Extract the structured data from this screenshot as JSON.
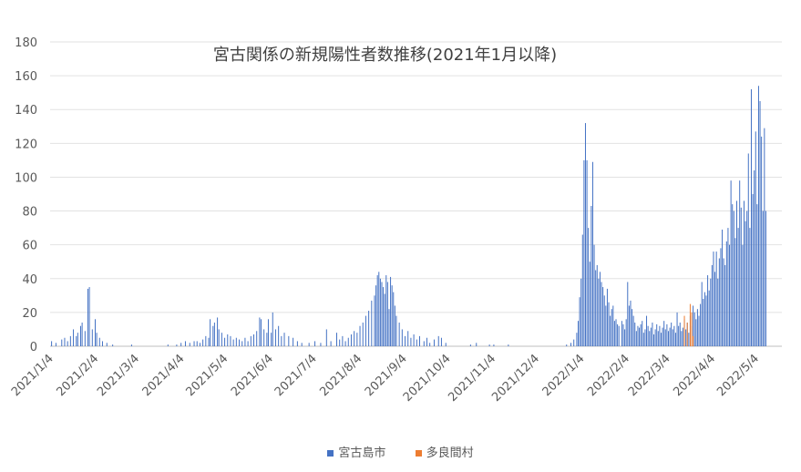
{
  "chart_data": {
    "type": "bar",
    "title": "宮古関係の新規陽性者数推移(2021年1月以降)",
    "xlabel": "",
    "ylabel": "",
    "ylim": [
      0,
      180
    ],
    "y_ticks": [
      0,
      20,
      40,
      60,
      80,
      100,
      120,
      140,
      160,
      180
    ],
    "x_range": [
      "2021-01-04",
      "2022-05-22"
    ],
    "x_tick_labels": [
      "2021/1/4",
      "2021/2/4",
      "2021/3/4",
      "2021/4/4",
      "2021/5/4",
      "2021/6/4",
      "2021/7/4",
      "2021/8/4",
      "2021/9/4",
      "2021/10/4",
      "2021/11/4",
      "2021/12/4",
      "2022/1/4",
      "2022/2/4",
      "2022/3/4",
      "2022/4/4",
      "2022/5/4"
    ],
    "grid": "horizontal",
    "legend_position": "bottom",
    "series": [
      {
        "name": "宮古島市",
        "color": "#4472c4",
        "points": [
          [
            "2021-01-05",
            3
          ],
          [
            "2021-01-08",
            2
          ],
          [
            "2021-01-12",
            4
          ],
          [
            "2021-01-14",
            5
          ],
          [
            "2021-01-16",
            3
          ],
          [
            "2021-01-18",
            6
          ],
          [
            "2021-01-20",
            10
          ],
          [
            "2021-01-22",
            6
          ],
          [
            "2021-01-23",
            8
          ],
          [
            "2021-01-25",
            12
          ],
          [
            "2021-01-26",
            14
          ],
          [
            "2021-01-28",
            9
          ],
          [
            "2021-01-30",
            34
          ],
          [
            "2021-01-31",
            35
          ],
          [
            "2021-02-02",
            10
          ],
          [
            "2021-02-04",
            16
          ],
          [
            "2021-02-05",
            8
          ],
          [
            "2021-02-07",
            5
          ],
          [
            "2021-02-09",
            3
          ],
          [
            "2021-02-12",
            2
          ],
          [
            "2021-02-16",
            1
          ],
          [
            "2021-03-01",
            1
          ],
          [
            "2021-03-26",
            1
          ],
          [
            "2021-04-01",
            1
          ],
          [
            "2021-04-04",
            2
          ],
          [
            "2021-04-07",
            3
          ],
          [
            "2021-04-10",
            2
          ],
          [
            "2021-04-13",
            3
          ],
          [
            "2021-04-15",
            3
          ],
          [
            "2021-04-17",
            2
          ],
          [
            "2021-04-19",
            4
          ],
          [
            "2021-04-21",
            6
          ],
          [
            "2021-04-23",
            5
          ],
          [
            "2021-04-24",
            16
          ],
          [
            "2021-04-26",
            12
          ],
          [
            "2021-04-27",
            14
          ],
          [
            "2021-04-29",
            17
          ],
          [
            "2021-04-30",
            10
          ],
          [
            "2021-05-02",
            8
          ],
          [
            "2021-05-04",
            5
          ],
          [
            "2021-05-06",
            7
          ],
          [
            "2021-05-08",
            6
          ],
          [
            "2021-05-10",
            4
          ],
          [
            "2021-05-12",
            5
          ],
          [
            "2021-05-14",
            4
          ],
          [
            "2021-05-16",
            3
          ],
          [
            "2021-05-18",
            5
          ],
          [
            "2021-05-20",
            3
          ],
          [
            "2021-05-22",
            6
          ],
          [
            "2021-05-24",
            7
          ],
          [
            "2021-05-26",
            9
          ],
          [
            "2021-05-28",
            17
          ],
          [
            "2021-05-29",
            16
          ],
          [
            "2021-05-31",
            10
          ],
          [
            "2021-06-02",
            8
          ],
          [
            "2021-06-03",
            16
          ],
          [
            "2021-06-05",
            8
          ],
          [
            "2021-06-06",
            20
          ],
          [
            "2021-06-08",
            10
          ],
          [
            "2021-06-10",
            12
          ],
          [
            "2021-06-12",
            6
          ],
          [
            "2021-06-14",
            8
          ],
          [
            "2021-06-17",
            6
          ],
          [
            "2021-06-20",
            5
          ],
          [
            "2021-06-23",
            3
          ],
          [
            "2021-06-26",
            2
          ],
          [
            "2021-07-01",
            2
          ],
          [
            "2021-07-05",
            3
          ],
          [
            "2021-07-09",
            2
          ],
          [
            "2021-07-13",
            10
          ],
          [
            "2021-07-16",
            3
          ],
          [
            "2021-07-20",
            8
          ],
          [
            "2021-07-22",
            4
          ],
          [
            "2021-07-24",
            6
          ],
          [
            "2021-07-26",
            3
          ],
          [
            "2021-07-28",
            5
          ],
          [
            "2021-07-30",
            7
          ],
          [
            "2021-08-01",
            9
          ],
          [
            "2021-08-03",
            8
          ],
          [
            "2021-08-05",
            12
          ],
          [
            "2021-08-07",
            14
          ],
          [
            "2021-08-09",
            18
          ],
          [
            "2021-08-11",
            21
          ],
          [
            "2021-08-13",
            27
          ],
          [
            "2021-08-15",
            30
          ],
          [
            "2021-08-16",
            36
          ],
          [
            "2021-08-17",
            42
          ],
          [
            "2021-08-18",
            44
          ],
          [
            "2021-08-19",
            40
          ],
          [
            "2021-08-20",
            38
          ],
          [
            "2021-08-21",
            35
          ],
          [
            "2021-08-22",
            31
          ],
          [
            "2021-08-23",
            42
          ],
          [
            "2021-08-24",
            38
          ],
          [
            "2021-08-25",
            22
          ],
          [
            "2021-08-26",
            41
          ],
          [
            "2021-08-27",
            36
          ],
          [
            "2021-08-28",
            32
          ],
          [
            "2021-08-29",
            24
          ],
          [
            "2021-08-30",
            18
          ],
          [
            "2021-09-01",
            14
          ],
          [
            "2021-09-03",
            10
          ],
          [
            "2021-09-05",
            6
          ],
          [
            "2021-09-07",
            9
          ],
          [
            "2021-09-09",
            5
          ],
          [
            "2021-09-11",
            7
          ],
          [
            "2021-09-13",
            4
          ],
          [
            "2021-09-15",
            6
          ],
          [
            "2021-09-18",
            3
          ],
          [
            "2021-09-20",
            5
          ],
          [
            "2021-09-22",
            2
          ],
          [
            "2021-09-25",
            4
          ],
          [
            "2021-09-28",
            6
          ],
          [
            "2021-09-30",
            5
          ],
          [
            "2021-10-03",
            2
          ],
          [
            "2021-10-20",
            1
          ],
          [
            "2021-10-24",
            2
          ],
          [
            "2021-11-02",
            1
          ],
          [
            "2021-11-05",
            1
          ],
          [
            "2021-11-15",
            1
          ],
          [
            "2021-12-25",
            1
          ],
          [
            "2021-12-28",
            2
          ],
          [
            "2021-12-30",
            4
          ],
          [
            "2022-01-01",
            8
          ],
          [
            "2022-01-02",
            15
          ],
          [
            "2022-01-03",
            29
          ],
          [
            "2022-01-04",
            40
          ],
          [
            "2022-01-05",
            66
          ],
          [
            "2022-01-06",
            110
          ],
          [
            "2022-01-07",
            132
          ],
          [
            "2022-01-08",
            110
          ],
          [
            "2022-01-09",
            70
          ],
          [
            "2022-01-10",
            50
          ],
          [
            "2022-01-11",
            83
          ],
          [
            "2022-01-12",
            109
          ],
          [
            "2022-01-13",
            60
          ],
          [
            "2022-01-14",
            45
          ],
          [
            "2022-01-15",
            48
          ],
          [
            "2022-01-16",
            40
          ],
          [
            "2022-01-17",
            44
          ],
          [
            "2022-01-18",
            38
          ],
          [
            "2022-01-19",
            35
          ],
          [
            "2022-01-20",
            30
          ],
          [
            "2022-01-21",
            24
          ],
          [
            "2022-01-22",
            34
          ],
          [
            "2022-01-23",
            26
          ],
          [
            "2022-01-24",
            18
          ],
          [
            "2022-01-25",
            22
          ],
          [
            "2022-01-26",
            24
          ],
          [
            "2022-01-27",
            15
          ],
          [
            "2022-01-28",
            16
          ],
          [
            "2022-01-29",
            13
          ],
          [
            "2022-01-30",
            12
          ],
          [
            "2022-02-01",
            15
          ],
          [
            "2022-02-02",
            13
          ],
          [
            "2022-02-03",
            10
          ],
          [
            "2022-02-04",
            16
          ],
          [
            "2022-02-05",
            38
          ],
          [
            "2022-02-06",
            24
          ],
          [
            "2022-02-07",
            27
          ],
          [
            "2022-02-08",
            22
          ],
          [
            "2022-02-09",
            18
          ],
          [
            "2022-02-10",
            14
          ],
          [
            "2022-02-11",
            9
          ],
          [
            "2022-02-12",
            12
          ],
          [
            "2022-02-13",
            11
          ],
          [
            "2022-02-14",
            13
          ],
          [
            "2022-02-15",
            15
          ],
          [
            "2022-02-16",
            8
          ],
          [
            "2022-02-17",
            10
          ],
          [
            "2022-02-18",
            18
          ],
          [
            "2022-02-19",
            12
          ],
          [
            "2022-02-20",
            9
          ],
          [
            "2022-02-21",
            11
          ],
          [
            "2022-02-22",
            14
          ],
          [
            "2022-02-23",
            7
          ],
          [
            "2022-02-24",
            10
          ],
          [
            "2022-02-25",
            13
          ],
          [
            "2022-02-26",
            9
          ],
          [
            "2022-02-27",
            12
          ],
          [
            "2022-02-28",
            8
          ],
          [
            "2022-03-01",
            11
          ],
          [
            "2022-03-02",
            15
          ],
          [
            "2022-03-03",
            10
          ],
          [
            "2022-03-04",
            13
          ],
          [
            "2022-03-05",
            9
          ],
          [
            "2022-03-06",
            11
          ],
          [
            "2022-03-07",
            14
          ],
          [
            "2022-03-08",
            10
          ],
          [
            "2022-03-09",
            12
          ],
          [
            "2022-03-10",
            8
          ],
          [
            "2022-03-11",
            20
          ],
          [
            "2022-03-12",
            12
          ],
          [
            "2022-03-13",
            14
          ],
          [
            "2022-03-14",
            9
          ],
          [
            "2022-03-15",
            11
          ],
          [
            "2022-03-16",
            16
          ],
          [
            "2022-03-17",
            10
          ],
          [
            "2022-03-18",
            14
          ],
          [
            "2022-03-19",
            8
          ],
          [
            "2022-03-20",
            18
          ],
          [
            "2022-03-21",
            12
          ],
          [
            "2022-03-22",
            24
          ],
          [
            "2022-03-23",
            20
          ],
          [
            "2022-03-24",
            16
          ],
          [
            "2022-03-25",
            22
          ],
          [
            "2022-03-26",
            18
          ],
          [
            "2022-03-27",
            25
          ],
          [
            "2022-03-28",
            38
          ],
          [
            "2022-03-29",
            28
          ],
          [
            "2022-03-30",
            32
          ],
          [
            "2022-03-31",
            30
          ],
          [
            "2022-04-01",
            42
          ],
          [
            "2022-04-02",
            33
          ],
          [
            "2022-04-03",
            40
          ],
          [
            "2022-04-04",
            48
          ],
          [
            "2022-04-05",
            56
          ],
          [
            "2022-04-06",
            44
          ],
          [
            "2022-04-07",
            56
          ],
          [
            "2022-04-08",
            40
          ],
          [
            "2022-04-09",
            52
          ],
          [
            "2022-04-10",
            58
          ],
          [
            "2022-04-11",
            69
          ],
          [
            "2022-04-12",
            52
          ],
          [
            "2022-04-13",
            48
          ],
          [
            "2022-04-14",
            62
          ],
          [
            "2022-04-15",
            70
          ],
          [
            "2022-04-16",
            60
          ],
          [
            "2022-04-17",
            98
          ],
          [
            "2022-04-18",
            84
          ],
          [
            "2022-04-19",
            80
          ],
          [
            "2022-04-20",
            64
          ],
          [
            "2022-04-21",
            86
          ],
          [
            "2022-04-22",
            70
          ],
          [
            "2022-04-23",
            98
          ],
          [
            "2022-04-24",
            82
          ],
          [
            "2022-04-25",
            60
          ],
          [
            "2022-04-26",
            86
          ],
          [
            "2022-04-27",
            74
          ],
          [
            "2022-04-28",
            80
          ],
          [
            "2022-04-29",
            114
          ],
          [
            "2022-04-30",
            70
          ],
          [
            "2022-05-01",
            152
          ],
          [
            "2022-05-02",
            90
          ],
          [
            "2022-05-03",
            104
          ],
          [
            "2022-05-04",
            127
          ],
          [
            "2022-05-05",
            84
          ],
          [
            "2022-05-06",
            154
          ],
          [
            "2022-05-07",
            145
          ],
          [
            "2022-05-08",
            124
          ],
          [
            "2022-05-09",
            80
          ],
          [
            "2022-05-10",
            129
          ],
          [
            "2022-05-11",
            80
          ]
        ]
      },
      {
        "name": "多良間村",
        "color": "#ed7d31",
        "points": [
          [
            "2022-03-16",
            18
          ],
          [
            "2022-03-18",
            14
          ],
          [
            "2022-03-20",
            25
          ],
          [
            "2022-03-21",
            20
          ],
          [
            "2022-03-22",
            6
          ]
        ]
      }
    ]
  }
}
